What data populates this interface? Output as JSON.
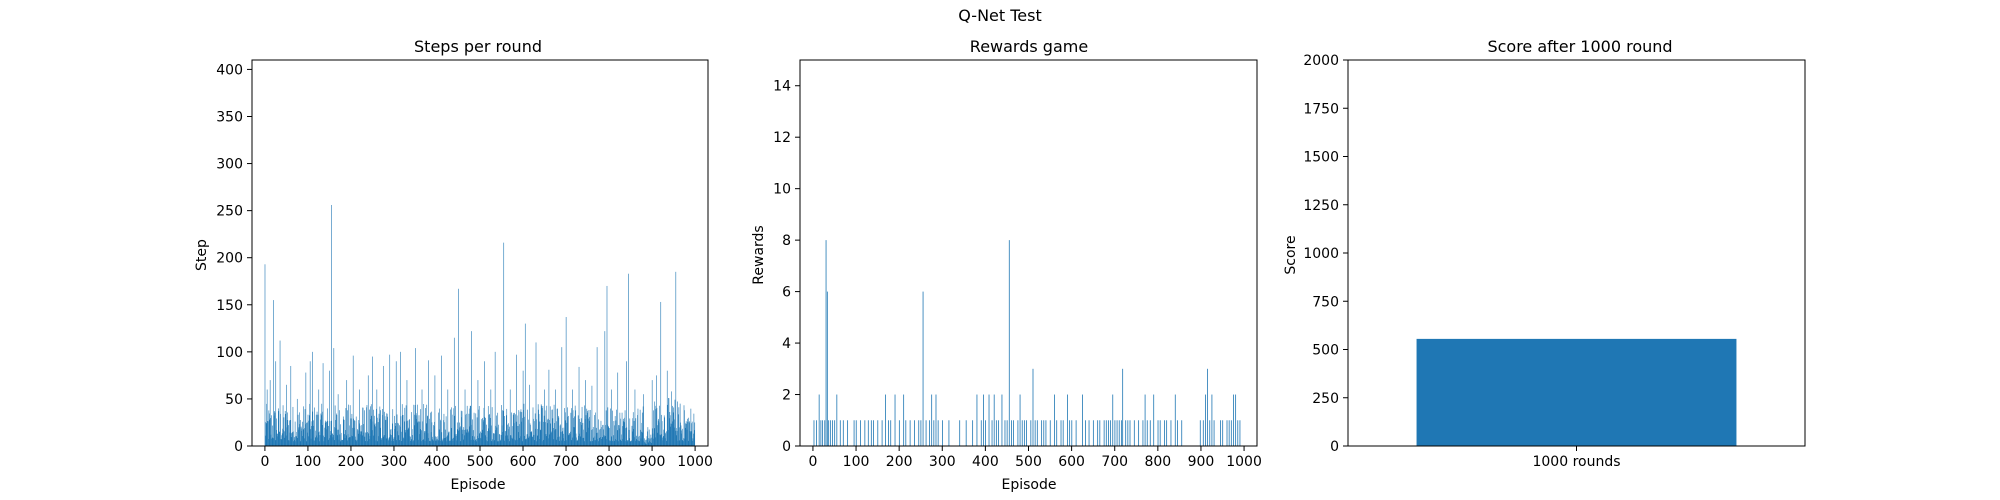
{
  "figure": {
    "suptitle": "Q-Net Test"
  },
  "colors": {
    "bar": "#1f77b4",
    "axis": "#000000",
    "background": "#ffffff"
  },
  "chart_data": [
    {
      "type": "bar",
      "title": "Steps per round",
      "xlabel": "Episode",
      "ylabel": "Step",
      "xlim": [
        -30,
        1030
      ],
      "ylim": [
        0,
        410
      ],
      "xticks": [
        0,
        100,
        200,
        300,
        400,
        500,
        600,
        700,
        800,
        900,
        1000
      ],
      "yticks": [
        0,
        50,
        100,
        150,
        200,
        250,
        300,
        350,
        400
      ],
      "grid": false,
      "episodes": 1000,
      "baseline_note": "Most episodes between about 5 and 45 steps",
      "peaks": [
        [
          0,
          193
        ],
        [
          5,
          60
        ],
        [
          12,
          70
        ],
        [
          20,
          155
        ],
        [
          25,
          90
        ],
        [
          35,
          112
        ],
        [
          50,
          65
        ],
        [
          60,
          85
        ],
        [
          75,
          50
        ],
        [
          95,
          78
        ],
        [
          105,
          90
        ],
        [
          110,
          100
        ],
        [
          125,
          60
        ],
        [
          135,
          88
        ],
        [
          150,
          80
        ],
        [
          155,
          256
        ],
        [
          160,
          104
        ],
        [
          170,
          55
        ],
        [
          190,
          70
        ],
        [
          205,
          96
        ],
        [
          220,
          60
        ],
        [
          240,
          75
        ],
        [
          250,
          95
        ],
        [
          260,
          60
        ],
        [
          275,
          85
        ],
        [
          290,
          97
        ],
        [
          305,
          90
        ],
        [
          315,
          100
        ],
        [
          330,
          70
        ],
        [
          350,
          104
        ],
        [
          365,
          60
        ],
        [
          380,
          91
        ],
        [
          395,
          75
        ],
        [
          410,
          96
        ],
        [
          425,
          60
        ],
        [
          440,
          115
        ],
        [
          450,
          167
        ],
        [
          465,
          60
        ],
        [
          480,
          122
        ],
        [
          495,
          70
        ],
        [
          510,
          90
        ],
        [
          525,
          60
        ],
        [
          535,
          100
        ],
        [
          555,
          216
        ],
        [
          570,
          60
        ],
        [
          585,
          97
        ],
        [
          600,
          80
        ],
        [
          605,
          130
        ],
        [
          615,
          65
        ],
        [
          630,
          110
        ],
        [
          650,
          60
        ],
        [
          660,
          81
        ],
        [
          675,
          60
        ],
        [
          690,
          105
        ],
        [
          700,
          137
        ],
        [
          715,
          60
        ],
        [
          730,
          84
        ],
        [
          745,
          70
        ],
        [
          760,
          64
        ],
        [
          772,
          105
        ],
        [
          790,
          122
        ],
        [
          795,
          170
        ],
        [
          805,
          60
        ],
        [
          820,
          78
        ],
        [
          840,
          90
        ],
        [
          845,
          183
        ],
        [
          860,
          60
        ],
        [
          880,
          55
        ],
        [
          890,
          20
        ],
        [
          895,
          8
        ],
        [
          900,
          70
        ],
        [
          910,
          75
        ],
        [
          920,
          153
        ],
        [
          935,
          80
        ],
        [
          945,
          58
        ],
        [
          955,
          185
        ],
        [
          965,
          45
        ],
        [
          975,
          38
        ],
        [
          985,
          30
        ],
        [
          999,
          25
        ]
      ]
    },
    {
      "type": "bar",
      "title": "Rewards game",
      "xlabel": "Episode",
      "ylabel": "Rewards",
      "xlim": [
        -30,
        1030
      ],
      "ylim": [
        0,
        15
      ],
      "xticks": [
        0,
        100,
        200,
        300,
        400,
        500,
        600,
        700,
        800,
        900,
        1000
      ],
      "yticks": [
        0,
        2,
        4,
        6,
        8,
        10,
        12,
        14
      ],
      "grid": false,
      "episodes": 1000,
      "nonzero": [
        [
          2,
          1
        ],
        [
          8,
          1
        ],
        [
          14,
          2
        ],
        [
          18,
          1
        ],
        [
          22,
          1
        ],
        [
          27,
          1
        ],
        [
          30,
          8
        ],
        [
          33,
          6
        ],
        [
          36,
          1
        ],
        [
          40,
          1
        ],
        [
          45,
          1
        ],
        [
          50,
          1
        ],
        [
          55,
          2
        ],
        [
          63,
          1
        ],
        [
          70,
          1
        ],
        [
          80,
          1
        ],
        [
          95,
          1
        ],
        [
          100,
          1
        ],
        [
          110,
          1
        ],
        [
          120,
          1
        ],
        [
          128,
          1
        ],
        [
          135,
          1
        ],
        [
          140,
          1
        ],
        [
          150,
          1
        ],
        [
          160,
          1
        ],
        [
          168,
          2
        ],
        [
          175,
          1
        ],
        [
          180,
          1
        ],
        [
          190,
          2
        ],
        [
          200,
          1
        ],
        [
          210,
          2
        ],
        [
          215,
          1
        ],
        [
          225,
          1
        ],
        [
          235,
          1
        ],
        [
          245,
          1
        ],
        [
          250,
          1
        ],
        [
          255,
          6
        ],
        [
          262,
          1
        ],
        [
          270,
          1
        ],
        [
          275,
          2
        ],
        [
          280,
          1
        ],
        [
          285,
          2
        ],
        [
          290,
          1
        ],
        [
          300,
          1
        ],
        [
          315,
          1
        ],
        [
          340,
          1
        ],
        [
          355,
          1
        ],
        [
          370,
          1
        ],
        [
          380,
          2
        ],
        [
          390,
          1
        ],
        [
          395,
          2
        ],
        [
          400,
          1
        ],
        [
          408,
          2
        ],
        [
          415,
          1
        ],
        [
          420,
          2
        ],
        [
          425,
          1
        ],
        [
          430,
          1
        ],
        [
          438,
          2
        ],
        [
          445,
          1
        ],
        [
          450,
          1
        ],
        [
          455,
          8
        ],
        [
          460,
          1
        ],
        [
          465,
          1
        ],
        [
          475,
          1
        ],
        [
          480,
          2
        ],
        [
          485,
          1
        ],
        [
          490,
          1
        ],
        [
          495,
          1
        ],
        [
          505,
          1
        ],
        [
          510,
          3
        ],
        [
          515,
          1
        ],
        [
          520,
          1
        ],
        [
          530,
          1
        ],
        [
          535,
          1
        ],
        [
          540,
          1
        ],
        [
          550,
          1
        ],
        [
          560,
          2
        ],
        [
          565,
          1
        ],
        [
          575,
          1
        ],
        [
          580,
          1
        ],
        [
          590,
          2
        ],
        [
          595,
          1
        ],
        [
          600,
          1
        ],
        [
          610,
          1
        ],
        [
          625,
          2
        ],
        [
          632,
          1
        ],
        [
          640,
          1
        ],
        [
          650,
          1
        ],
        [
          660,
          1
        ],
        [
          665,
          1
        ],
        [
          675,
          1
        ],
        [
          680,
          1
        ],
        [
          685,
          1
        ],
        [
          690,
          1
        ],
        [
          695,
          2
        ],
        [
          700,
          1
        ],
        [
          705,
          1
        ],
        [
          710,
          1
        ],
        [
          715,
          1
        ],
        [
          718,
          3
        ],
        [
          725,
          1
        ],
        [
          730,
          1
        ],
        [
          735,
          1
        ],
        [
          745,
          1
        ],
        [
          755,
          1
        ],
        [
          765,
          1
        ],
        [
          770,
          2
        ],
        [
          775,
          1
        ],
        [
          782,
          1
        ],
        [
          790,
          2
        ],
        [
          800,
          1
        ],
        [
          805,
          1
        ],
        [
          815,
          1
        ],
        [
          820,
          1
        ],
        [
          830,
          1
        ],
        [
          840,
          2
        ],
        [
          845,
          1
        ],
        [
          855,
          1
        ],
        [
          898,
          1
        ],
        [
          905,
          1
        ],
        [
          910,
          2
        ],
        [
          915,
          3
        ],
        [
          920,
          1
        ],
        [
          925,
          2
        ],
        [
          930,
          1
        ],
        [
          945,
          1
        ],
        [
          950,
          1
        ],
        [
          960,
          1
        ],
        [
          965,
          1
        ],
        [
          970,
          1
        ],
        [
          975,
          2
        ],
        [
          980,
          2
        ],
        [
          985,
          1
        ],
        [
          990,
          1
        ]
      ]
    },
    {
      "type": "bar",
      "title": "Score after 1000 round",
      "xlabel": "",
      "ylabel": "Score",
      "ylim": [
        0,
        2000
      ],
      "yticks": [
        0,
        250,
        500,
        750,
        1000,
        1250,
        1500,
        1750,
        2000
      ],
      "categories": [
        "1000 rounds"
      ],
      "values": [
        555
      ],
      "grid": false
    }
  ]
}
